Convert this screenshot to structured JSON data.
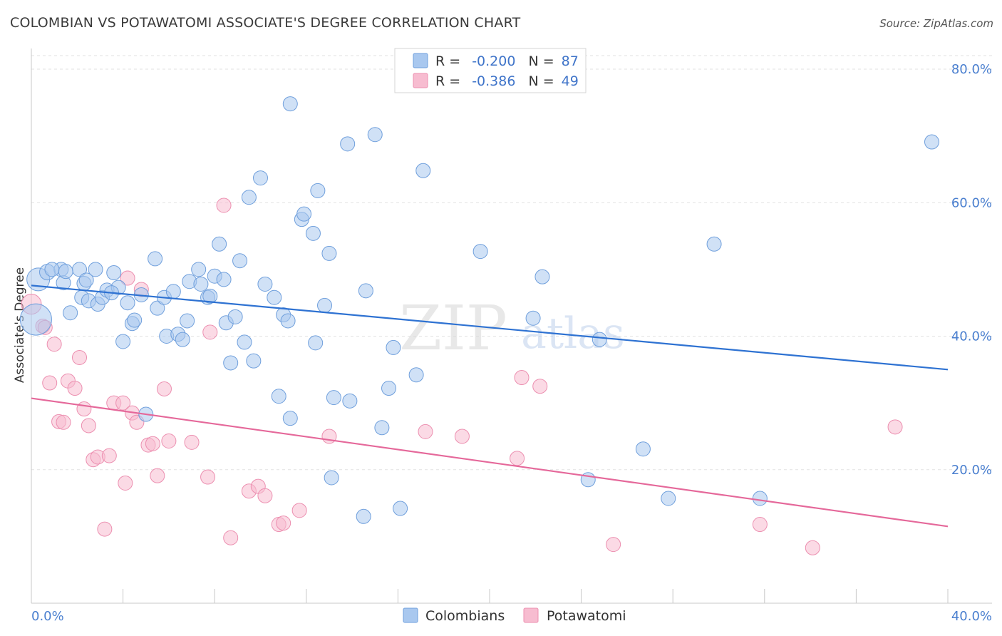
{
  "title": "COLOMBIAN VS POTAWATOMI ASSOCIATE'S DEGREE CORRELATION CHART",
  "source": "Source: ZipAtlas.com",
  "watermark": {
    "zip": "ZIP",
    "atlas": "atlas"
  },
  "colors": {
    "blue_fill": "#a9c8ef",
    "blue_stroke": "#6f9fdc",
    "blue_line": "#2e72d2",
    "pink_fill": "#f7bcd0",
    "pink_stroke": "#ec8fb0",
    "pink_line": "#e5689a",
    "axis_label": "#4a7fcf",
    "grid": "#e2e2e2"
  },
  "stats": [
    {
      "r_label": "R = ",
      "r_value": "-0.200",
      "n_label": "N = ",
      "n_value": "87"
    },
    {
      "r_label": "R = ",
      "r_value": "-0.386",
      "n_label": "N = ",
      "n_value": "49"
    }
  ],
  "chart_data": {
    "type": "scatter",
    "title": "COLOMBIAN VS POTAWATOMI ASSOCIATE'S DEGREE CORRELATION CHART",
    "xlabel": "",
    "ylabel": "Associate's Degree",
    "xlim": [
      0,
      40
    ],
    "ylim": [
      0,
      82
    ],
    "x_tick_labels": [
      "0.0%",
      "40.0%"
    ],
    "y_ticks": [
      20,
      40,
      60,
      80
    ],
    "y_tick_labels": [
      "20.0%",
      "40.0%",
      "60.0%",
      "80.0%"
    ],
    "grid": true,
    "legend_position": "bottom-center",
    "series": [
      {
        "name": "Colombians",
        "color": "#a9c8ef",
        "trend": {
          "x0": 0,
          "y0": 47.6,
          "x1": 40,
          "y1": 35.0
        },
        "points": [
          [
            0.3,
            48.5,
            16
          ],
          [
            0.7,
            49.6,
            11
          ],
          [
            1.3,
            50.0,
            10
          ],
          [
            0.9,
            50.0,
            10
          ],
          [
            1.4,
            48.0,
            10
          ],
          [
            1.7,
            43.5,
            10
          ],
          [
            2.1,
            50.0,
            10
          ],
          [
            2.2,
            45.8,
            10
          ],
          [
            2.3,
            47.9,
            10
          ],
          [
            2.4,
            48.4,
            10
          ],
          [
            2.5,
            45.3,
            10
          ],
          [
            2.8,
            50.0,
            10
          ],
          [
            2.9,
            44.8,
            10
          ],
          [
            3.1,
            45.8,
            10
          ],
          [
            3.3,
            46.9,
            10
          ],
          [
            3.6,
            49.5,
            10
          ],
          [
            3.8,
            47.3,
            10
          ],
          [
            4.0,
            39.2,
            10
          ],
          [
            4.2,
            45.0,
            10
          ],
          [
            4.4,
            41.9,
            10
          ],
          [
            4.5,
            42.4,
            10
          ],
          [
            4.8,
            46.2,
            10
          ],
          [
            5.0,
            28.3,
            10
          ],
          [
            5.4,
            51.6,
            10
          ],
          [
            5.5,
            44.2,
            10
          ],
          [
            5.8,
            45.8,
            10
          ],
          [
            5.9,
            40.0,
            10
          ],
          [
            6.2,
            46.7,
            10
          ],
          [
            6.4,
            40.3,
            10
          ],
          [
            6.6,
            39.5,
            10
          ],
          [
            6.8,
            42.3,
            10
          ],
          [
            6.9,
            48.2,
            10
          ],
          [
            7.3,
            50.0,
            10
          ],
          [
            7.4,
            47.8,
            10
          ],
          [
            7.7,
            45.8,
            10
          ],
          [
            7.8,
            46.0,
            10
          ],
          [
            8.0,
            49.0,
            10
          ],
          [
            8.2,
            53.8,
            10
          ],
          [
            8.4,
            48.5,
            10
          ],
          [
            8.5,
            42.0,
            10
          ],
          [
            8.7,
            36.0,
            10
          ],
          [
            8.9,
            42.9,
            10
          ],
          [
            9.1,
            51.3,
            10
          ],
          [
            9.3,
            39.1,
            10
          ],
          [
            9.5,
            60.8,
            10
          ],
          [
            9.7,
            36.3,
            10
          ],
          [
            10.0,
            63.7,
            10
          ],
          [
            10.2,
            47.8,
            10
          ],
          [
            10.6,
            45.8,
            10
          ],
          [
            10.8,
            31.0,
            10
          ],
          [
            11.0,
            43.2,
            10
          ],
          [
            11.2,
            42.3,
            10
          ],
          [
            11.3,
            27.7,
            10
          ],
          [
            11.3,
            74.8,
            10
          ],
          [
            11.8,
            57.5,
            10
          ],
          [
            11.9,
            58.3,
            10
          ],
          [
            12.3,
            55.4,
            10
          ],
          [
            12.4,
            39.0,
            10
          ],
          [
            12.5,
            61.8,
            10
          ],
          [
            12.8,
            44.6,
            10
          ],
          [
            13.0,
            52.4,
            10
          ],
          [
            13.1,
            18.8,
            10
          ],
          [
            13.2,
            30.8,
            10
          ],
          [
            13.8,
            68.8,
            10
          ],
          [
            13.9,
            30.3,
            10
          ],
          [
            14.5,
            13.0,
            10
          ],
          [
            14.6,
            46.8,
            10
          ],
          [
            15.0,
            70.2,
            10
          ],
          [
            15.3,
            26.3,
            10
          ],
          [
            15.6,
            32.2,
            10
          ],
          [
            15.8,
            38.3,
            10
          ],
          [
            16.1,
            14.2,
            10
          ],
          [
            16.8,
            34.2,
            10
          ],
          [
            17.1,
            64.8,
            10
          ],
          [
            19.6,
            52.7,
            10
          ],
          [
            21.9,
            42.7,
            10
          ],
          [
            22.3,
            48.9,
            10
          ],
          [
            24.3,
            18.5,
            10
          ],
          [
            24.8,
            39.5,
            10
          ],
          [
            26.7,
            23.1,
            10
          ],
          [
            27.8,
            15.7,
            10
          ],
          [
            29.8,
            53.8,
            10
          ],
          [
            31.8,
            15.7,
            10
          ],
          [
            39.3,
            69.1,
            10
          ],
          [
            0.2,
            42.5,
            22
          ],
          [
            1.5,
            49.7,
            10
          ],
          [
            3.5,
            46.5,
            10
          ]
        ]
      },
      {
        "name": "Potawatomi",
        "color": "#f7bcd0",
        "trend": {
          "x0": 0,
          "y0": 30.7,
          "x1": 40,
          "y1": 11.5
        },
        "points": [
          [
            0.0,
            44.8,
            14
          ],
          [
            0.5,
            41.5,
            10
          ],
          [
            0.6,
            41.3,
            10
          ],
          [
            0.8,
            33.0,
            10
          ],
          [
            1.0,
            38.8,
            10
          ],
          [
            1.2,
            27.2,
            10
          ],
          [
            1.4,
            27.1,
            10
          ],
          [
            1.6,
            33.3,
            10
          ],
          [
            1.9,
            32.2,
            10
          ],
          [
            2.1,
            36.8,
            10
          ],
          [
            2.3,
            29.1,
            10
          ],
          [
            2.5,
            26.6,
            10
          ],
          [
            2.7,
            21.5,
            10
          ],
          [
            2.9,
            21.9,
            10
          ],
          [
            3.2,
            11.1,
            10
          ],
          [
            3.4,
            22.1,
            10
          ],
          [
            3.6,
            30.0,
            10
          ],
          [
            4.0,
            30.0,
            10
          ],
          [
            4.1,
            18.0,
            10
          ],
          [
            4.2,
            48.7,
            10
          ],
          [
            4.4,
            28.5,
            10
          ],
          [
            4.6,
            27.1,
            10
          ],
          [
            4.8,
            47.0,
            10
          ],
          [
            5.1,
            23.7,
            10
          ],
          [
            5.3,
            23.9,
            10
          ],
          [
            5.5,
            19.1,
            10
          ],
          [
            5.8,
            32.1,
            10
          ],
          [
            6.0,
            24.3,
            10
          ],
          [
            7.0,
            24.1,
            10
          ],
          [
            7.7,
            18.9,
            10
          ],
          [
            7.8,
            40.6,
            10
          ],
          [
            8.4,
            59.6,
            10
          ],
          [
            8.7,
            9.8,
            10
          ],
          [
            9.5,
            16.8,
            10
          ],
          [
            9.9,
            17.5,
            10
          ],
          [
            10.2,
            16.1,
            10
          ],
          [
            10.8,
            11.8,
            10
          ],
          [
            11.0,
            12.0,
            10
          ],
          [
            11.7,
            13.9,
            10
          ],
          [
            13.0,
            25.0,
            10
          ],
          [
            17.2,
            25.7,
            10
          ],
          [
            18.8,
            25.0,
            10
          ],
          [
            21.2,
            21.7,
            10
          ],
          [
            21.4,
            33.8,
            10
          ],
          [
            22.2,
            32.5,
            10
          ],
          [
            25.4,
            8.8,
            10
          ],
          [
            31.8,
            11.8,
            10
          ],
          [
            34.1,
            8.3,
            10
          ],
          [
            37.7,
            26.4,
            10
          ]
        ]
      }
    ]
  },
  "legend": [
    {
      "label": "Colombians"
    },
    {
      "label": "Potawatomi"
    }
  ]
}
